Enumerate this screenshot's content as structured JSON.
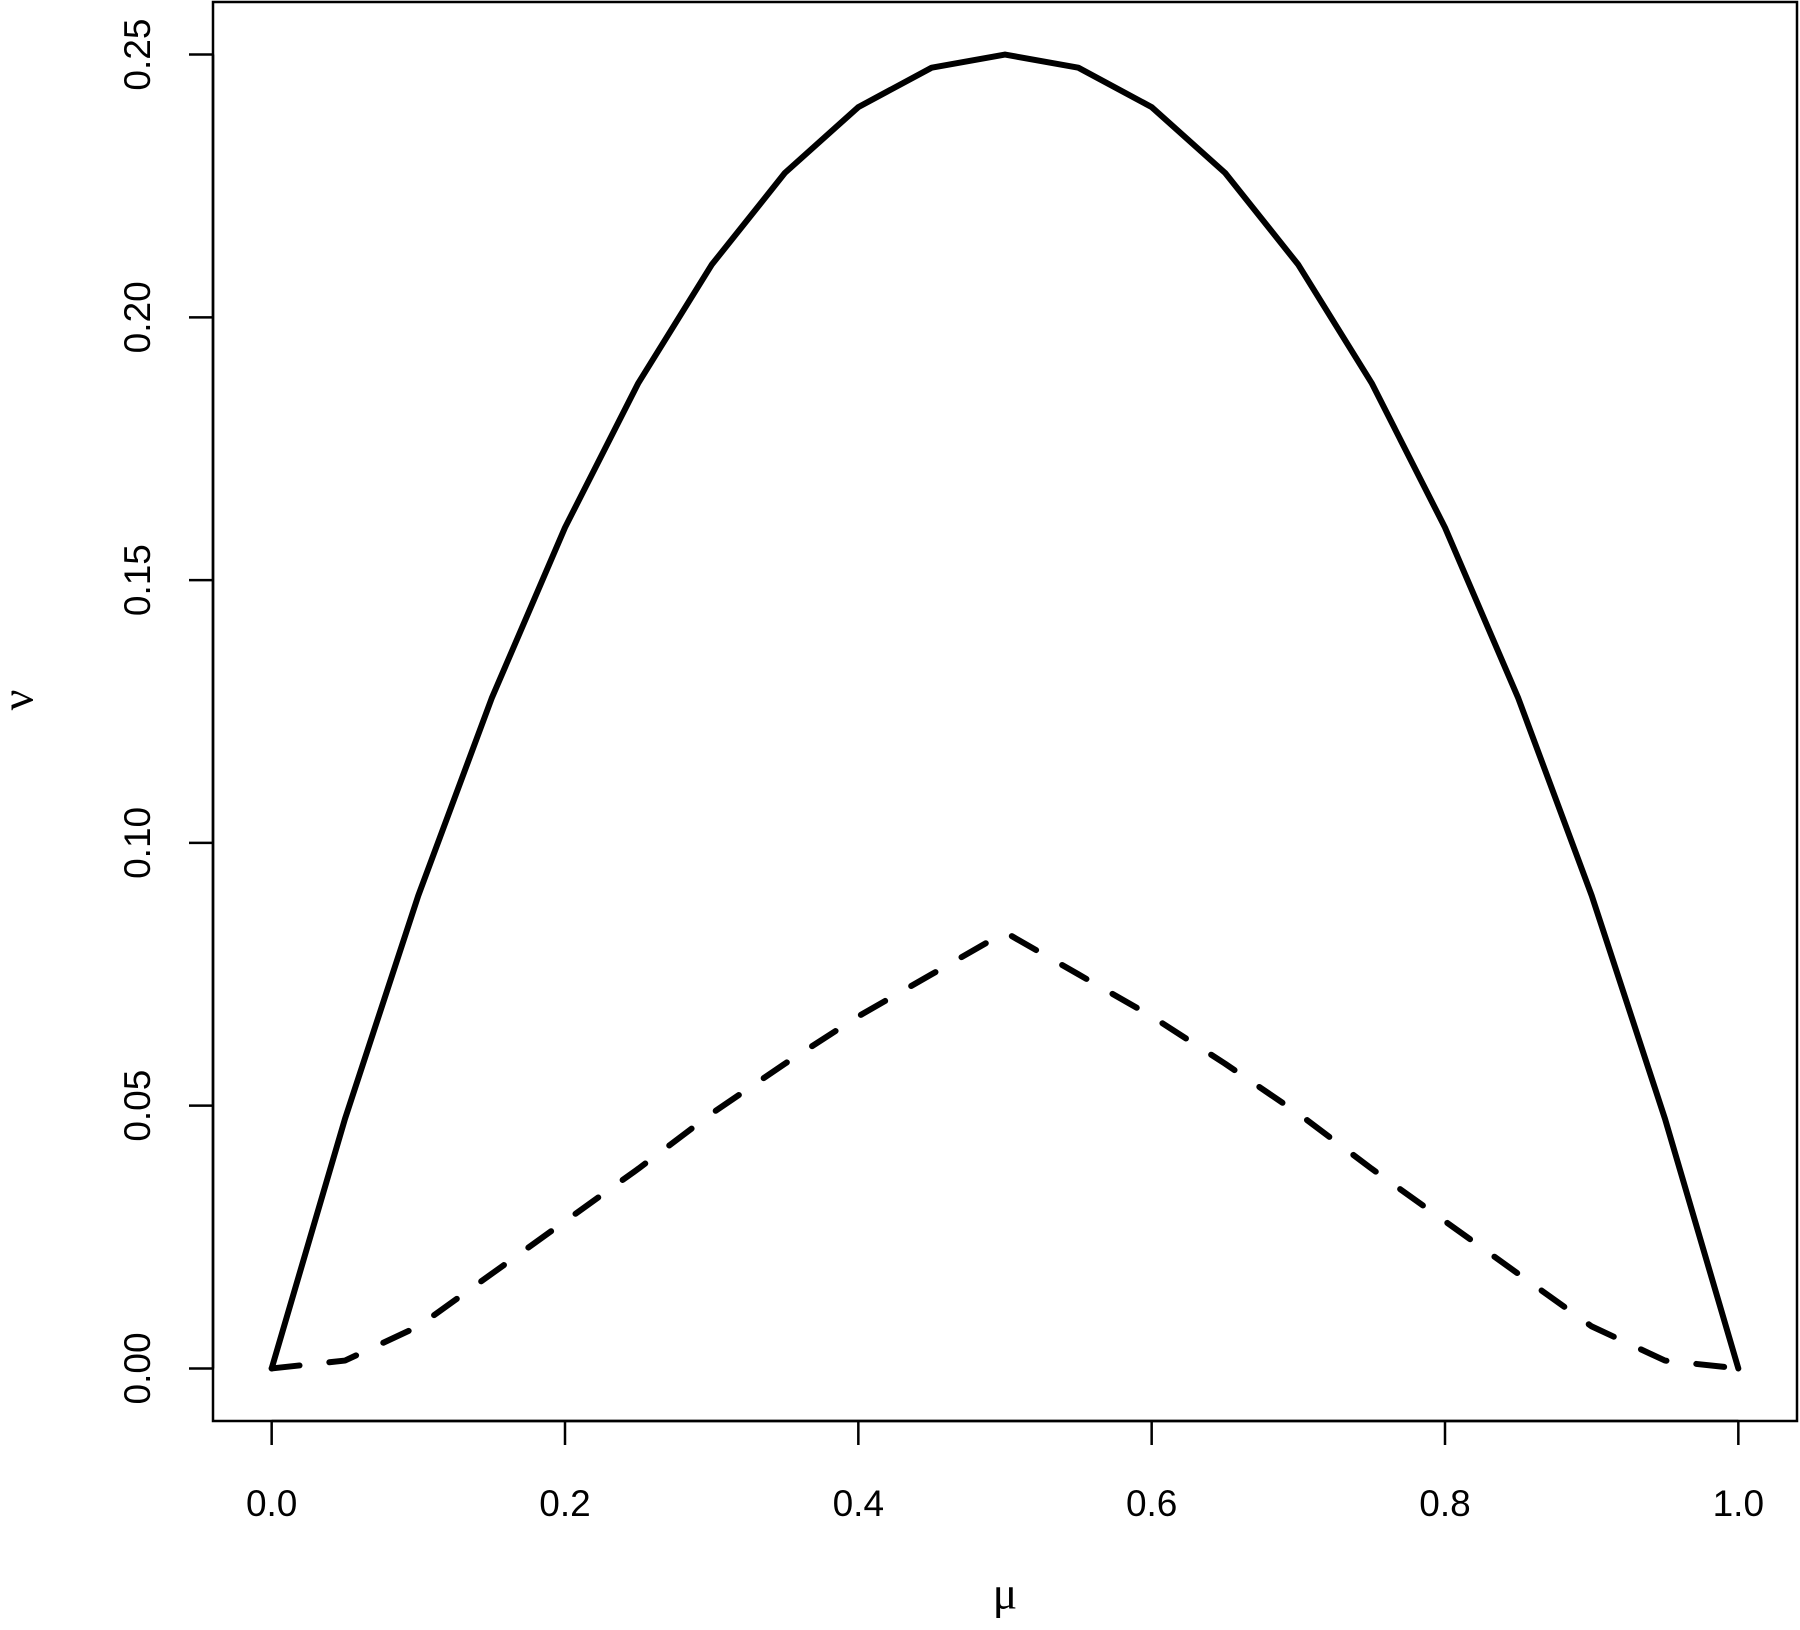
{
  "chart_data": {
    "type": "line",
    "xlabel": "μ",
    "ylabel": "ν",
    "x": [
      0,
      0.05,
      0.1,
      0.15,
      0.2,
      0.25,
      0.3,
      0.35,
      0.4,
      0.45,
      0.5,
      0.55,
      0.6,
      0.65,
      0.7,
      0.75,
      0.8,
      0.85,
      0.9,
      0.95,
      1
    ],
    "series": [
      {
        "color": "#000000",
        "linestyle": "solid",
        "values": [
          0,
          0.0475,
          0.09,
          0.1275,
          0.16,
          0.1875,
          0.21,
          0.2275,
          0.24,
          0.2475,
          0.25,
          0.2475,
          0.24,
          0.2275,
          0.21,
          0.1875,
          0.16,
          0.1275,
          0.09,
          0.0475,
          0
        ]
      },
      {
        "color": "#000000",
        "linestyle": "dashed",
        "values": [
          0,
          0.0015,
          0.008,
          0.018,
          0.028,
          0.038,
          0.0485,
          0.058,
          0.067,
          0.075,
          0.083,
          0.075,
          0.067,
          0.058,
          0.0485,
          0.038,
          0.028,
          0.018,
          0.008,
          0.0015,
          0
        ]
      }
    ],
    "xlim": [
      -0.04,
      1.04
    ],
    "ylim": [
      -0.01,
      0.26
    ],
    "xticks": [
      {
        "value": 0,
        "label": "0.0"
      },
      0.2,
      0.4,
      0.6,
      0.8,
      {
        "value": 1,
        "label": "1.0"
      }
    ],
    "yticks": [
      {
        "value": 0,
        "label": "0.00"
      },
      {
        "value": 0.05,
        "label": "0.05"
      },
      {
        "value": 0.1,
        "label": "0.10"
      },
      {
        "value": 0.15,
        "label": "0.15"
      },
      {
        "value": 0.2,
        "label": "0.20"
      },
      {
        "value": 0.25,
        "label": "0.25"
      }
    ],
    "grid": false
  }
}
